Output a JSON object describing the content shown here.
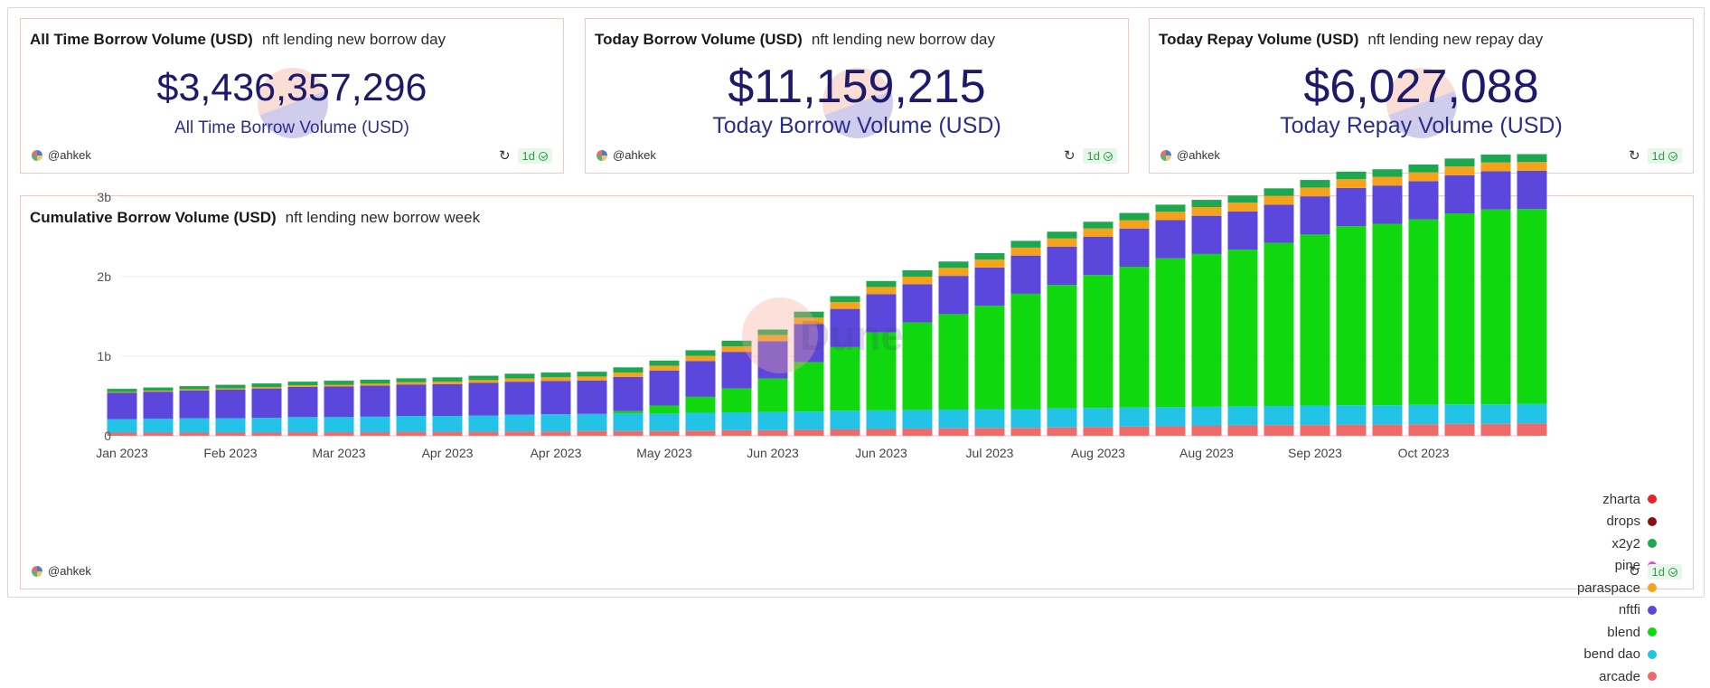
{
  "counters": [
    {
      "title": "All Time Borrow Volume (USD)",
      "subtitle": "nft lending new borrow day",
      "value": "$3,436,357,296",
      "label": "All Time Borrow Volume (USD)",
      "author": "@ahkek",
      "badge": "1d"
    },
    {
      "title": "Today Borrow Volume (USD)",
      "subtitle": "nft lending new borrow day",
      "value": "$11,159,215",
      "label": "Today Borrow Volume (USD)",
      "author": "@ahkek",
      "badge": "1d"
    },
    {
      "title": "Today Repay Volume (USD)",
      "subtitle": "nft lending new repay day",
      "value": "$6,027,088",
      "label": "Today Repay Volume (USD)",
      "author": "@ahkek",
      "badge": "1d"
    }
  ],
  "chart_panel": {
    "title": "Cumulative Borrow Volume (USD)",
    "subtitle": "nft lending new borrow week",
    "author": "@ahkek",
    "badge": "1d",
    "watermark": "Dune"
  },
  "chart_data": {
    "type": "bar",
    "stacked": true,
    "yticks": [
      "0",
      "1b",
      "2b",
      "3b"
    ],
    "ylim": [
      0,
      3.7
    ],
    "y_unit": "billion USD",
    "grid": true,
    "legend_position": "right",
    "xtick_labels": [
      "Jan 2023",
      "Feb 2023",
      "Mar 2023",
      "Apr 2023",
      "Apr 2023",
      "May 2023",
      "Jun 2023",
      "Jun 2023",
      "Jul 2023",
      "Aug 2023",
      "Aug 2023",
      "Sep 2023",
      "Oct 2023"
    ],
    "xtick_bar_index": [
      0,
      3,
      6,
      9,
      12,
      15,
      18,
      21,
      24,
      27,
      30,
      33,
      36
    ],
    "series": [
      {
        "name": "arcade",
        "color": "#f06a6a",
        "values": [
          0.04,
          0.04,
          0.04,
          0.04,
          0.04,
          0.045,
          0.045,
          0.045,
          0.05,
          0.05,
          0.05,
          0.055,
          0.055,
          0.06,
          0.06,
          0.06,
          0.065,
          0.07,
          0.07,
          0.075,
          0.08,
          0.085,
          0.09,
          0.095,
          0.1,
          0.1,
          0.105,
          0.11,
          0.115,
          0.12,
          0.125,
          0.13,
          0.135,
          0.135,
          0.14,
          0.14,
          0.145,
          0.15,
          0.15,
          0.155
        ]
      },
      {
        "name": "bend dao",
        "color": "#22c3e6",
        "values": [
          0.17,
          0.175,
          0.18,
          0.18,
          0.185,
          0.19,
          0.19,
          0.195,
          0.2,
          0.2,
          0.205,
          0.21,
          0.215,
          0.215,
          0.22,
          0.22,
          0.225,
          0.225,
          0.23,
          0.23,
          0.235,
          0.235,
          0.235,
          0.235,
          0.235,
          0.235,
          0.24,
          0.24,
          0.24,
          0.24,
          0.24,
          0.24,
          0.24,
          0.245,
          0.245,
          0.245,
          0.245,
          0.245,
          0.245,
          0.245
        ]
      },
      {
        "name": "blend",
        "color": "#0fd80f",
        "values": [
          0,
          0,
          0,
          0,
          0,
          0,
          0,
          0,
          0,
          0,
          0,
          0,
          0,
          0,
          0.03,
          0.1,
          0.2,
          0.3,
          0.42,
          0.62,
          0.8,
          0.98,
          1.1,
          1.2,
          1.3,
          1.45,
          1.55,
          1.67,
          1.77,
          1.87,
          1.92,
          1.97,
          2.05,
          2.15,
          2.25,
          2.28,
          2.33,
          2.4,
          2.45,
          2.45
        ]
      },
      {
        "name": "nftfi",
        "color": "#5b47db",
        "values": [
          0.33,
          0.34,
          0.35,
          0.36,
          0.37,
          0.38,
          0.385,
          0.39,
          0.395,
          0.4,
          0.41,
          0.415,
          0.42,
          0.42,
          0.43,
          0.44,
          0.45,
          0.46,
          0.47,
          0.48,
          0.48,
          0.48,
          0.48,
          0.48,
          0.48,
          0.48,
          0.48,
          0.48,
          0.48,
          0.48,
          0.48,
          0.48,
          0.48,
          0.48,
          0.48,
          0.48,
          0.48,
          0.48,
          0.48,
          0.48
        ]
      },
      {
        "name": "paraspace",
        "color": "#f7a21b",
        "values": [
          0.01,
          0.012,
          0.014,
          0.016,
          0.018,
          0.02,
          0.022,
          0.025,
          0.028,
          0.03,
          0.035,
          0.04,
          0.045,
          0.05,
          0.055,
          0.06,
          0.065,
          0.07,
          0.075,
          0.08,
          0.085,
          0.09,
          0.095,
          0.1,
          0.1,
          0.1,
          0.105,
          0.105,
          0.105,
          0.105,
          0.11,
          0.11,
          0.11,
          0.11,
          0.11,
          0.11,
          0.11,
          0.11,
          0.11,
          0.11
        ]
      },
      {
        "name": "pine",
        "color": "#e84ae0",
        "values": [
          0,
          0,
          0,
          0,
          0,
          0,
          0,
          0,
          0,
          0,
          0,
          0,
          0,
          0,
          0,
          0,
          0,
          0,
          0,
          0,
          0,
          0,
          0,
          0,
          0,
          0,
          0,
          0,
          0,
          0,
          0,
          0,
          0,
          0,
          0,
          0,
          0,
          0,
          0,
          0
        ]
      },
      {
        "name": "x2y2",
        "color": "#1da850",
        "values": [
          0.04,
          0.04,
          0.04,
          0.045,
          0.045,
          0.045,
          0.05,
          0.05,
          0.05,
          0.055,
          0.055,
          0.06,
          0.06,
          0.06,
          0.065,
          0.065,
          0.07,
          0.07,
          0.07,
          0.075,
          0.075,
          0.075,
          0.08,
          0.08,
          0.08,
          0.085,
          0.085,
          0.085,
          0.09,
          0.09,
          0.09,
          0.09,
          0.095,
          0.095,
          0.095,
          0.095,
          0.1,
          0.1,
          0.1,
          0.1
        ]
      },
      {
        "name": "drops",
        "color": "#8b1010",
        "values": [
          0,
          0,
          0,
          0,
          0,
          0,
          0,
          0,
          0,
          0,
          0,
          0,
          0,
          0,
          0,
          0,
          0,
          0,
          0,
          0,
          0,
          0,
          0,
          0,
          0,
          0,
          0,
          0,
          0,
          0,
          0,
          0,
          0,
          0,
          0,
          0,
          0,
          0,
          0,
          0
        ]
      },
      {
        "name": "zharta",
        "color": "#e8202c",
        "values": [
          0,
          0,
          0,
          0,
          0,
          0,
          0,
          0,
          0,
          0,
          0,
          0,
          0,
          0,
          0,
          0,
          0,
          0,
          0,
          0,
          0,
          0,
          0,
          0,
          0,
          0,
          0,
          0,
          0,
          0,
          0,
          0,
          0,
          0,
          0,
          0,
          0,
          0,
          0,
          0
        ]
      }
    ]
  }
}
